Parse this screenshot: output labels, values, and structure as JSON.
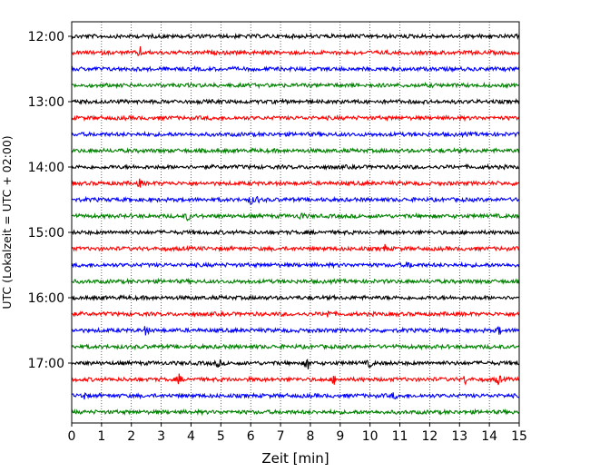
{
  "chart_data": {
    "type": "line",
    "title": "",
    "xlabel": "Zeit  [min]",
    "ylabel": "UTC (Lokalzeit = UTC + 02:00)",
    "xlim": [
      0,
      15
    ],
    "x_ticks": [
      "0",
      "1",
      "2",
      "3",
      "4",
      "5",
      "6",
      "7",
      "8",
      "9",
      "10",
      "11",
      "12",
      "13",
      "14",
      "15"
    ],
    "y_ticks": [
      {
        "label": "12:00",
        "row": 0
      },
      {
        "label": "13:00",
        "row": 4
      },
      {
        "label": "14:00",
        "row": 8
      },
      {
        "label": "15:00",
        "row": 12
      },
      {
        "label": "16:00",
        "row": 16
      },
      {
        "label": "17:00",
        "row": 20
      }
    ],
    "row_minutes": 15,
    "rows": 24,
    "color_cycle": [
      "#000000",
      "#ff0000",
      "#0000ff",
      "#008000"
    ],
    "x_grid": "dotted vertical at every minute",
    "traces": "seismogram-like noise traces, one per 15-minute interval; occasional spikes near minutes 2.3 (13:15), 6 (14:30), 7.9 (17:00), 3.6 (17:15), 14.3 (17:15)"
  }
}
